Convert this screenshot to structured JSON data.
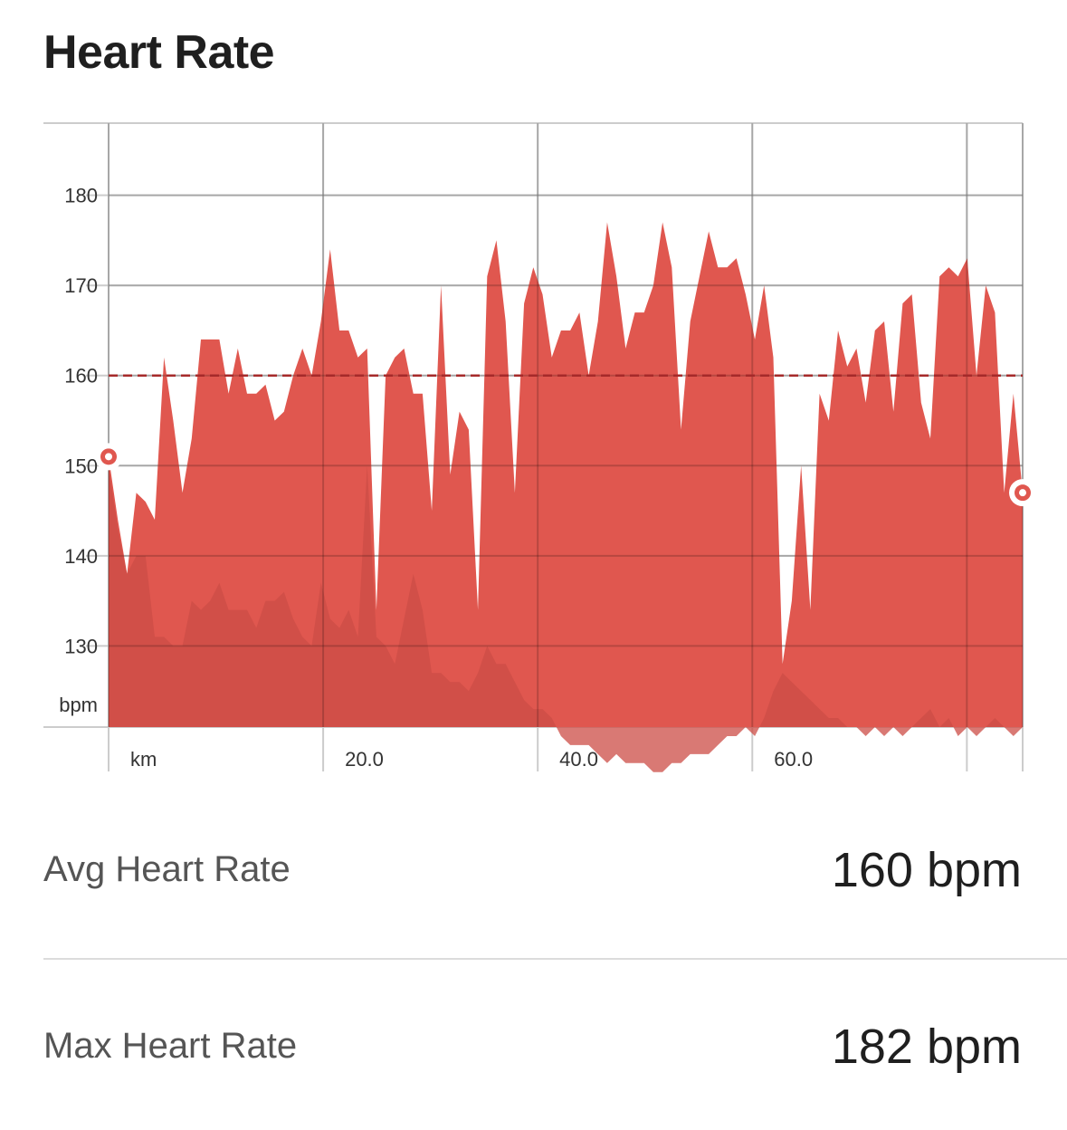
{
  "header": {
    "title": "Heart Rate"
  },
  "chart_data": {
    "type": "area",
    "title": "",
    "ylabel": "bpm",
    "xlabel": "km",
    "ylim": [
      121,
      188
    ],
    "xlim": [
      0,
      85.2
    ],
    "y_ticks": [
      130,
      140,
      150,
      160,
      170,
      180
    ],
    "x_ticks": [
      0,
      20,
      40,
      60,
      80
    ],
    "x_tick_labels": [
      "km",
      "20.0",
      "40.0",
      "60.0",
      ""
    ],
    "average": 160,
    "series": [
      {
        "values": [
          151,
          144,
          138,
          147,
          146,
          144,
          162,
          155,
          147,
          153,
          164,
          164,
          164,
          158,
          163,
          158,
          158,
          159,
          155,
          156,
          160,
          163,
          160,
          166,
          174,
          165,
          165,
          162,
          163,
          134,
          160,
          162,
          163,
          158,
          158,
          145,
          170,
          149,
          156,
          154,
          134,
          171,
          175,
          166,
          147,
          168,
          172,
          169,
          162,
          165,
          165,
          167,
          160,
          166,
          177,
          171,
          163,
          167,
          167,
          170,
          177,
          172,
          154,
          166,
          171,
          176,
          172,
          172,
          173,
          169,
          164,
          170,
          162,
          128,
          135,
          150,
          134,
          158,
          155,
          165,
          161,
          163,
          157,
          165,
          166,
          156,
          168,
          169,
          157,
          153,
          171,
          172,
          171,
          173,
          160,
          170,
          167,
          147,
          158,
          147
        ],
        "color": "#e0574f"
      },
      {
        "name": "elevation (background)",
        "values": [
          150,
          143,
          138,
          140,
          140,
          131,
          131,
          130,
          130,
          135,
          134,
          135,
          137,
          134,
          134,
          134,
          132,
          135,
          135,
          136,
          133,
          131,
          130,
          137,
          133,
          132,
          134,
          131,
          150,
          131,
          130,
          128,
          133,
          138,
          134,
          127,
          127,
          126,
          126,
          125,
          127,
          130,
          128,
          128,
          126,
          124,
          123,
          123,
          122,
          120,
          119,
          119,
          119,
          118,
          117,
          118,
          117,
          117,
          117,
          116,
          116,
          117,
          117,
          118,
          118,
          118,
          119,
          120,
          120,
          121,
          120,
          122,
          125,
          127,
          126,
          125,
          124,
          123,
          122,
          122,
          121,
          121,
          120,
          121,
          120,
          121,
          120,
          121,
          122,
          123,
          121,
          122,
          120,
          121,
          120,
          121,
          122,
          121,
          120,
          121
        ],
        "color": "#cc4c46"
      }
    ],
    "endpoints": {
      "start": 151,
      "end": 147
    }
  },
  "stats": [
    {
      "label": "Avg Heart Rate",
      "value": "160 bpm"
    },
    {
      "label": "Max Heart Rate",
      "value": "182 bpm"
    }
  ],
  "colors": {
    "area": "#e0574f",
    "avg_line": "#a52a2a",
    "grid": "#cccccc"
  }
}
